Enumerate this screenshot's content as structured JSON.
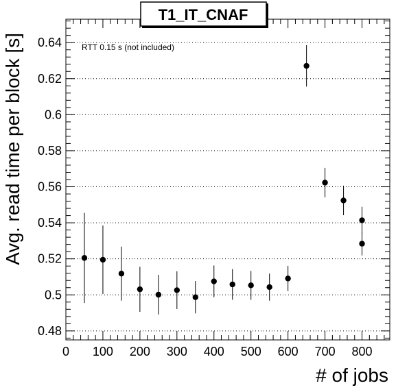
{
  "chart_data": {
    "type": "scatter",
    "title": "T1_IT_CNAF",
    "xlabel": "# of jobs",
    "ylabel": "Avg. read time per block [s]",
    "annotation": "RTT 0.15 s (not included)",
    "xlim": [
      0,
      875
    ],
    "ylim": [
      0.475,
      0.653
    ],
    "grid": "horizontal dotted",
    "x_ticks": [
      0,
      100,
      200,
      300,
      400,
      500,
      600,
      700,
      800
    ],
    "x_tick_labels": [
      "0",
      "100",
      "200",
      "300",
      "400",
      "500",
      "600",
      "700",
      "800"
    ],
    "y_ticks": [
      0.48,
      0.5,
      0.52,
      0.54,
      0.56,
      0.58,
      0.6,
      0.62,
      0.64
    ],
    "y_tick_labels": [
      "0.48",
      "0.5",
      "0.52",
      "0.54",
      "0.56",
      "0.58",
      "0.6",
      "0.62",
      "0.64"
    ],
    "points": [
      {
        "x": 50,
        "y": 0.5205,
        "err": 0.025
      },
      {
        "x": 100,
        "y": 0.5195,
        "err": 0.019
      },
      {
        "x": 150,
        "y": 0.5118,
        "err": 0.015
      },
      {
        "x": 200,
        "y": 0.5031,
        "err": 0.0125
      },
      {
        "x": 250,
        "y": 0.5001,
        "err": 0.011
      },
      {
        "x": 300,
        "y": 0.5026,
        "err": 0.0105
      },
      {
        "x": 350,
        "y": 0.4987,
        "err": 0.009
      },
      {
        "x": 400,
        "y": 0.5075,
        "err": 0.0088
      },
      {
        "x": 450,
        "y": 0.5058,
        "err": 0.0085
      },
      {
        "x": 500,
        "y": 0.5053,
        "err": 0.008
      },
      {
        "x": 550,
        "y": 0.5043,
        "err": 0.0075
      },
      {
        "x": 600,
        "y": 0.5091,
        "err": 0.007
      },
      {
        "x": 650,
        "y": 0.6271,
        "err": 0.0115
      },
      {
        "x": 700,
        "y": 0.5623,
        "err": 0.0082
      },
      {
        "x": 750,
        "y": 0.5524,
        "err": 0.0082
      },
      {
        "x": 800,
        "y": 0.5414,
        "err": 0.0075
      },
      {
        "x": 800,
        "y": 0.5284,
        "err": 0.0065
      }
    ],
    "marker_color": "#000000"
  }
}
